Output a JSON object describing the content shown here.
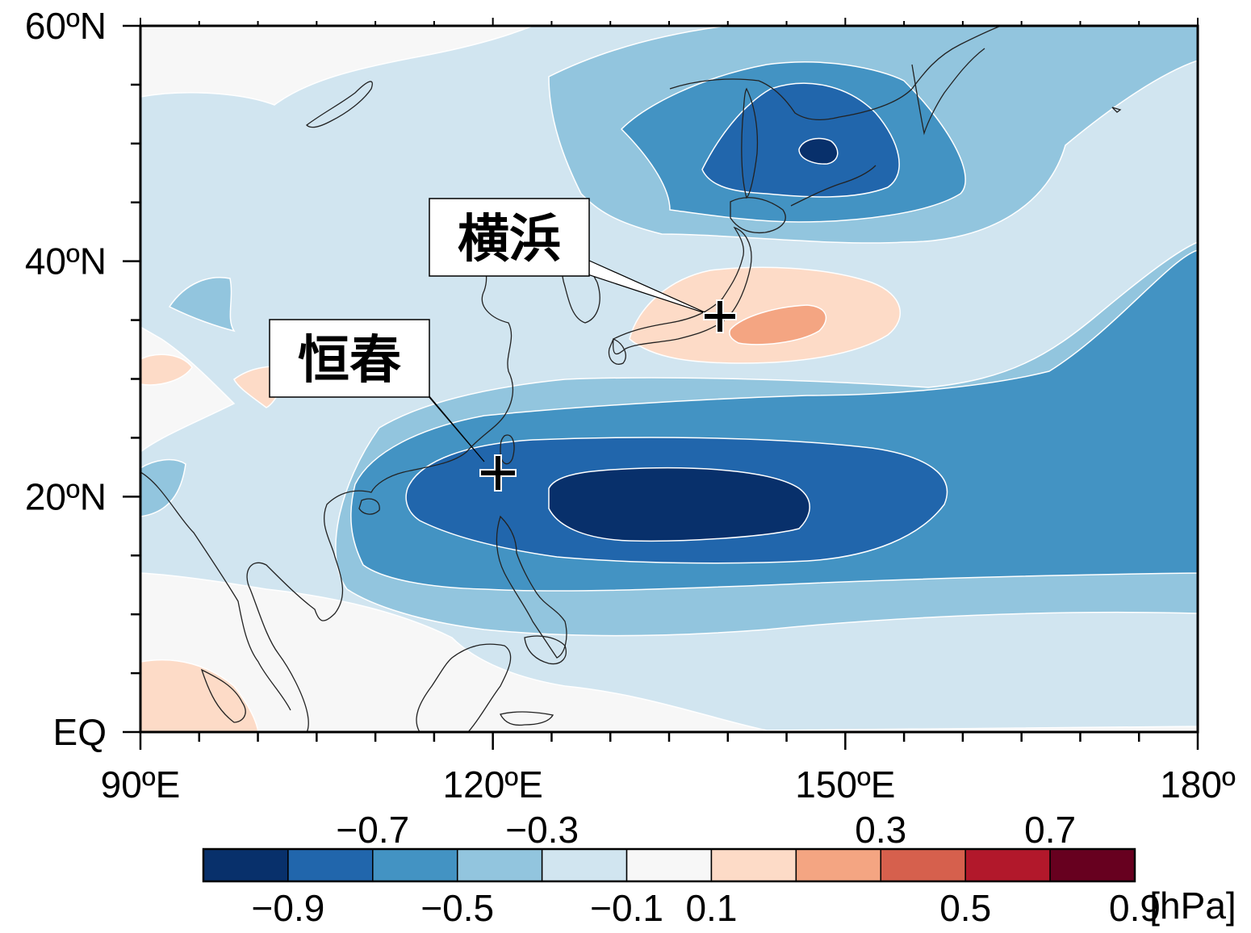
{
  "map": {
    "x_ticks": [
      {
        "value": 90,
        "label": "90ºE"
      },
      {
        "value": 120,
        "label": "120ºE"
      },
      {
        "value": 150,
        "label": "150ºE"
      },
      {
        "value": 180,
        "label": "180º"
      }
    ],
    "y_ticks": [
      {
        "value": 0,
        "label": "EQ"
      },
      {
        "value": 20,
        "label": "20ºN"
      },
      {
        "value": 40,
        "label": "40ºN"
      },
      {
        "value": 60,
        "label": "60ºN"
      }
    ],
    "lon_range": [
      90,
      180
    ],
    "lat_range": [
      0,
      60
    ],
    "markers": [
      {
        "name": "横浜",
        "lon": 139.6,
        "lat": 35.4
      },
      {
        "name": "恒春",
        "lon": 120.7,
        "lat": 22.0
      }
    ]
  },
  "colorbar": {
    "unit": "[hPa]",
    "colors": [
      "#08306b",
      "#2166ac",
      "#4393c3",
      "#92c5de",
      "#d1e5f0",
      "#f7f7f7",
      "#fddbc7",
      "#f4a582",
      "#d6604d",
      "#b2182b",
      "#67001f"
    ],
    "labels_top": [
      "−0.7",
      "−0.3",
      "0.3",
      "0.7"
    ],
    "labels_bottom": [
      "−0.9",
      "−0.5",
      "−0.1",
      "0.1",
      "0.5",
      "0.9"
    ]
  }
}
